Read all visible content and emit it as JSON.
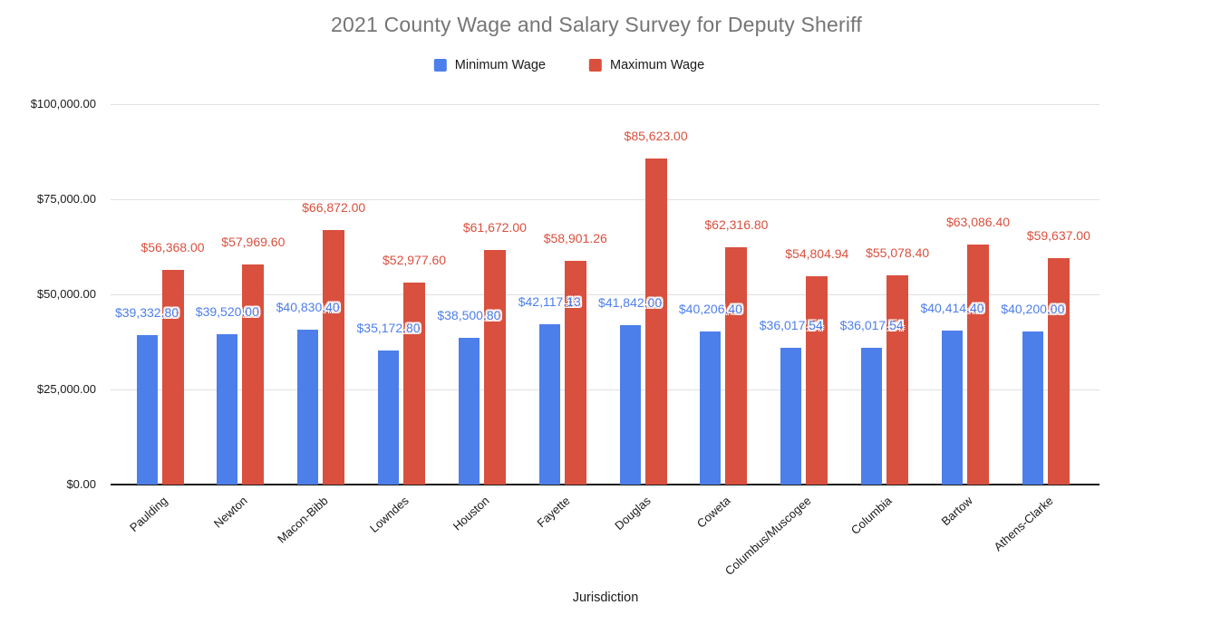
{
  "chart": {
    "title": "2021 County Wage and Salary Survey for Deputy Sheriff",
    "xlabel": "Jurisdiction"
  },
  "legend": {
    "items": [
      {
        "label": "Minimum Wage",
        "color": "#4d7feb"
      },
      {
        "label": "Maximum Wage",
        "color": "#d9503e"
      }
    ]
  },
  "chart_data": {
    "type": "bar",
    "title": "2021 County Wage and Salary Survey for Deputy Sheriff",
    "xlabel": "Jurisdiction",
    "ylabel": "",
    "ylim": [
      0,
      100000
    ],
    "grid": true,
    "legend_position": "top",
    "yticks": [
      {
        "value": 0,
        "label": "$0.00"
      },
      {
        "value": 25000,
        "label": "$25,000.00"
      },
      {
        "value": 50000,
        "label": "$50,000.00"
      },
      {
        "value": 75000,
        "label": "$75,000.00"
      },
      {
        "value": 100000,
        "label": "$100,000.00"
      }
    ],
    "categories": [
      "Paulding",
      "Newton",
      "Macon-Bibb",
      "Lowndes",
      "Houston",
      "Fayette",
      "Douglas",
      "Coweta",
      "Columbus/Muscogee",
      "Columbia",
      "Bartow",
      "Athens-Clarke"
    ],
    "series": [
      {
        "name": "Minimum Wage",
        "color": "#4d7feb",
        "values": [
          39332.8,
          39520.0,
          40830.4,
          35172.8,
          38500.8,
          42117.13,
          41842.0,
          40206.4,
          36017.54,
          36017.54,
          40414.4,
          40200.0
        ],
        "labels": [
          "$39,332.80",
          "$39,520.00",
          "$40,830.40",
          "$35,172.80",
          "$38,500.80",
          "$42,117.13",
          "$41,842.00",
          "$40,206.40",
          "$36,017.54",
          "$36,017.54",
          "$40,414.40",
          "$40,200.00"
        ]
      },
      {
        "name": "Maximum Wage",
        "color": "#d9503e",
        "values": [
          56368.0,
          57969.6,
          66872.0,
          52977.6,
          61672.0,
          58901.26,
          85623.0,
          62316.8,
          54804.94,
          55078.4,
          63086.4,
          59637.0
        ],
        "labels": [
          "$56,368.00",
          "$57,969.60",
          "$66,872.00",
          "$52,977.60",
          "$61,672.00",
          "$58,901.26",
          "$85,623.00",
          "$62,316.80",
          "$54,804.94",
          "$55,078.40",
          "$63,086.40",
          "$59,637.00"
        ]
      }
    ]
  }
}
